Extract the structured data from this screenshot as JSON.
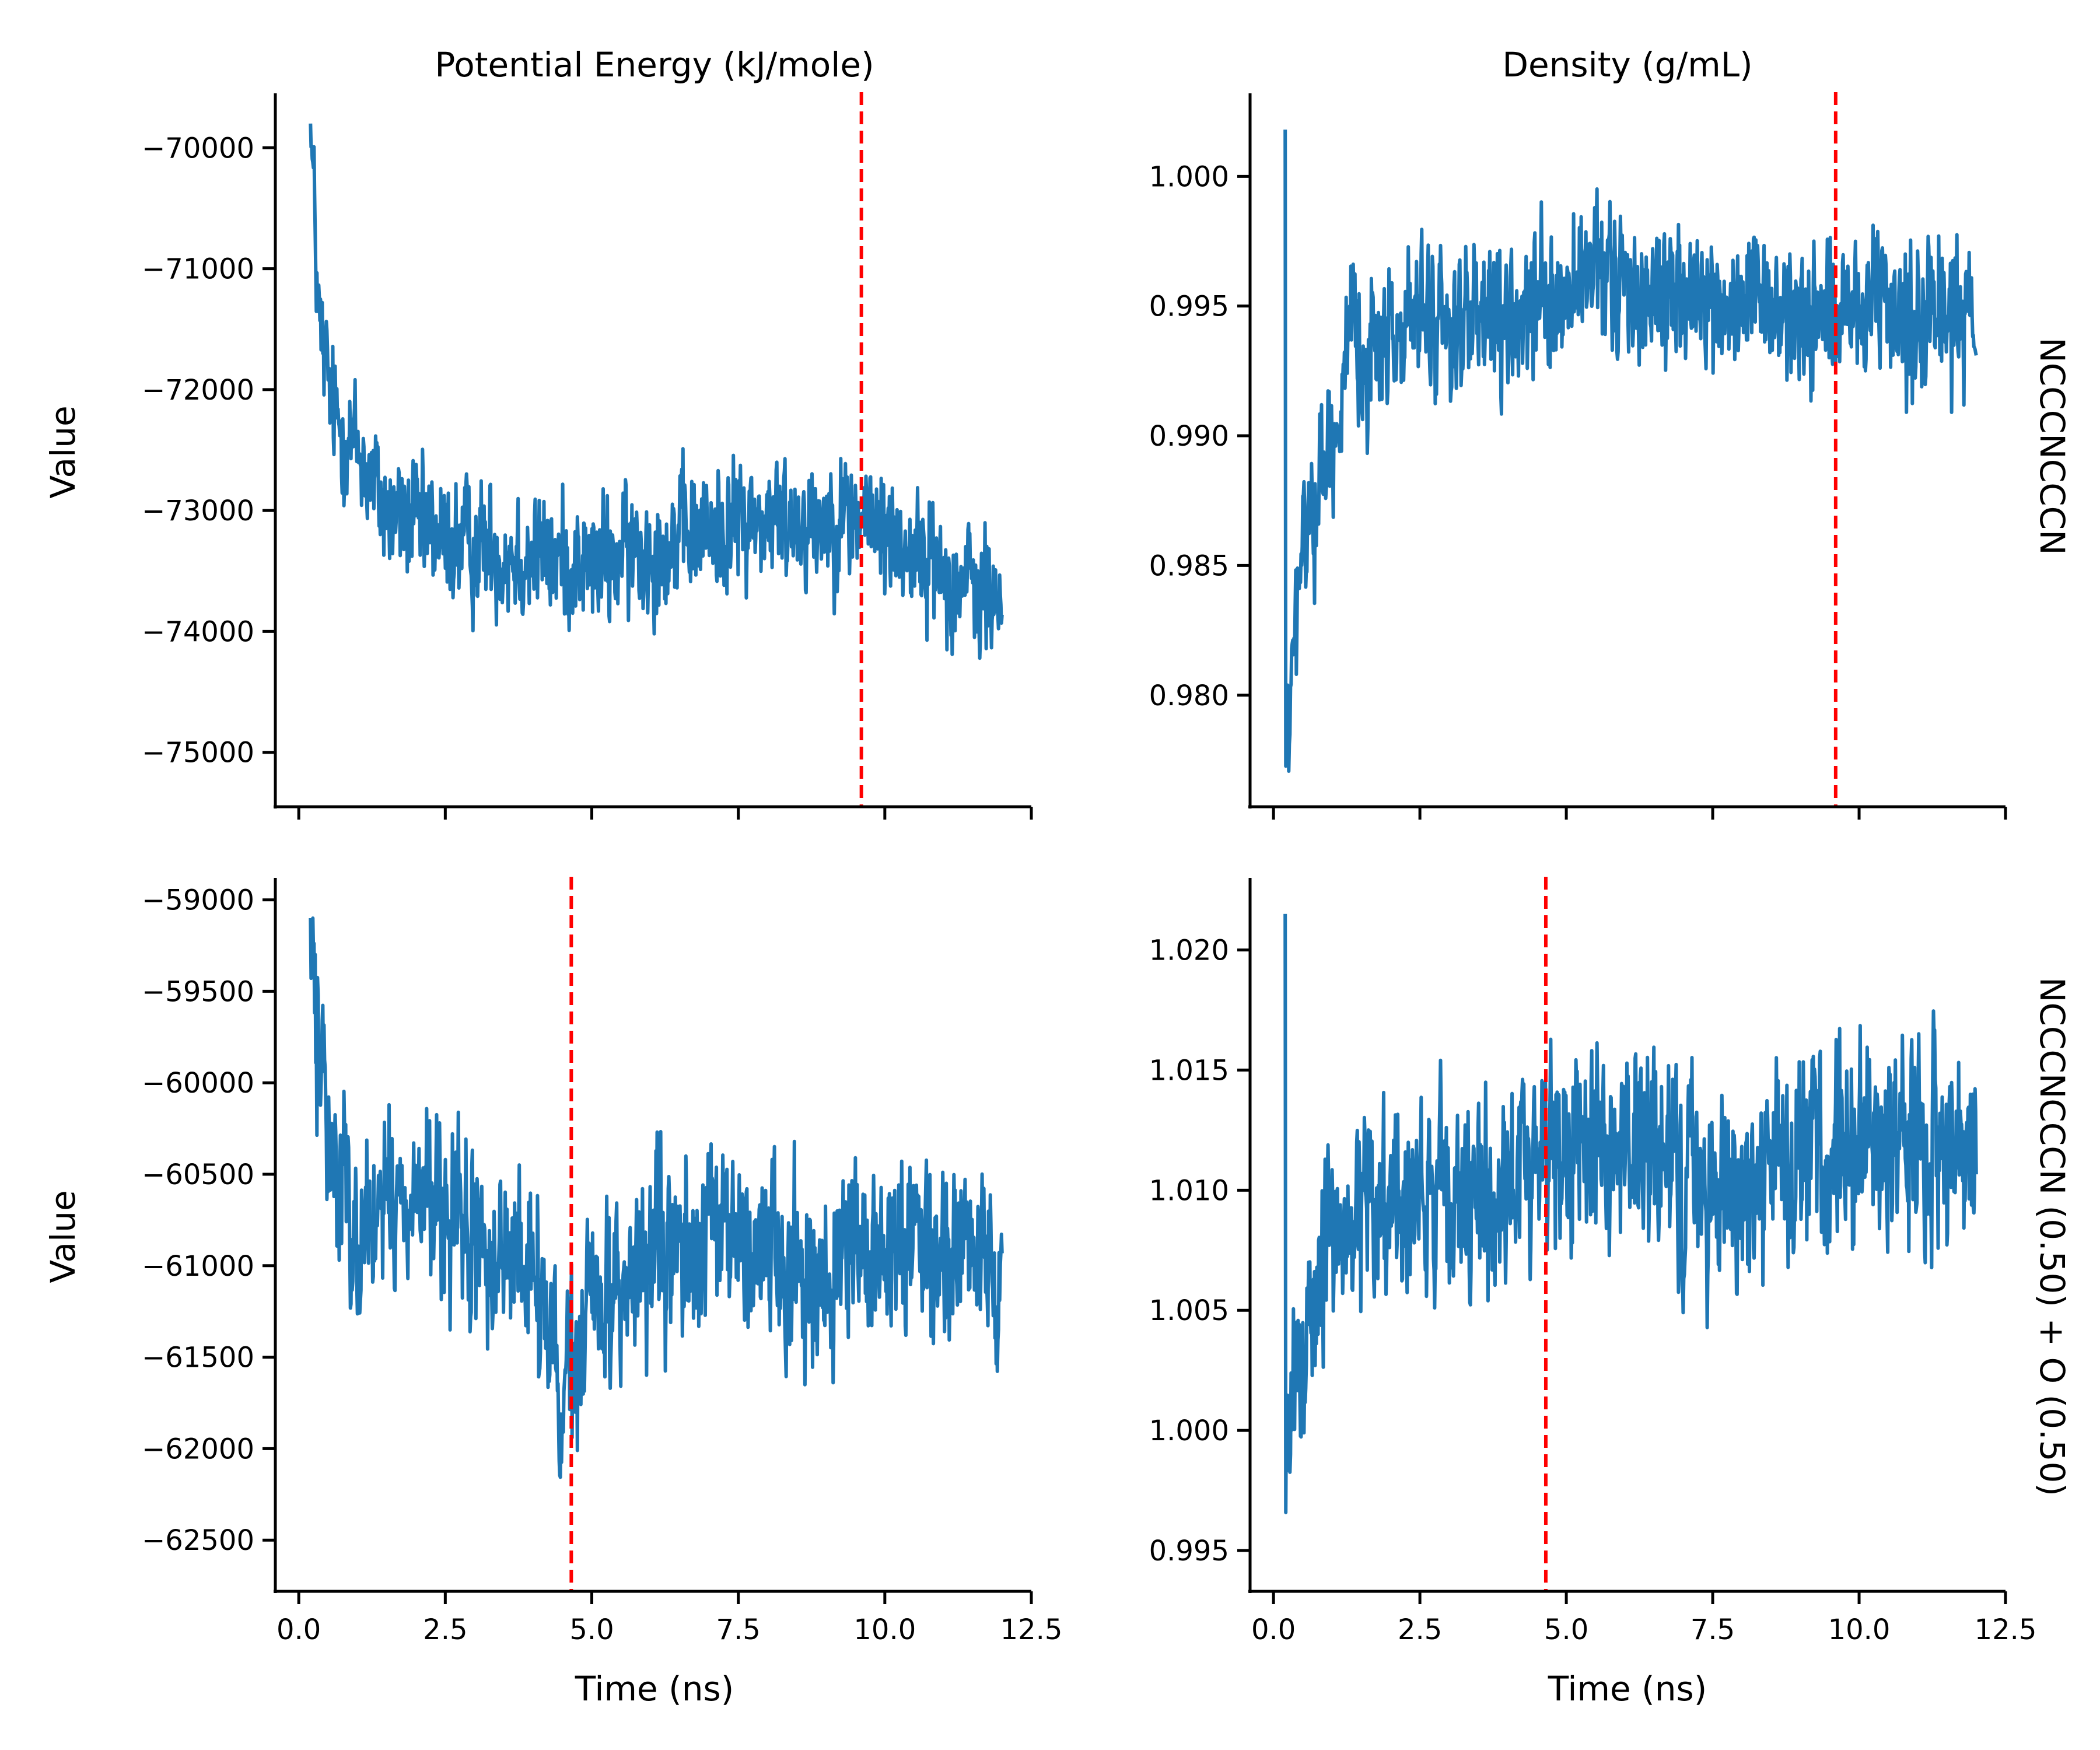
{
  "chart_data": [
    {
      "type": "line",
      "row": "NCCCNCCCN",
      "column_title": "Potential Energy (kJ/mole)",
      "ylabel": "Value",
      "xlabel": "",
      "xlim": [
        -0.4,
        12.5
      ],
      "ylim": [
        -75450,
        -69550
      ],
      "xticks": [
        0.0,
        2.5,
        5.0,
        7.5,
        10.0,
        12.5
      ],
      "yticks": [
        -75000,
        -74000,
        -73000,
        -72000,
        -71000,
        -70000
      ],
      "show_x_tick_labels": false,
      "vline": 9.6,
      "x_range": [
        0.2,
        12.0
      ],
      "series": {
        "color": "#1f77b4",
        "profile": [
          [
            0.2,
            -69800
          ],
          [
            0.35,
            -71500
          ],
          [
            0.6,
            -72200
          ],
          [
            1.0,
            -72500
          ],
          [
            1.5,
            -73000
          ],
          [
            2.5,
            -73250
          ],
          [
            5.0,
            -73450
          ],
          [
            7.5,
            -73100
          ],
          [
            9.6,
            -73050
          ],
          [
            11.0,
            -73500
          ],
          [
            12.0,
            -73800
          ]
        ],
        "noise": 350,
        "min": -75150,
        "max": -69800
      }
    },
    {
      "type": "line",
      "row": "NCCCNCCCN",
      "column_title": "Density (g/mL)",
      "ylabel": "",
      "xlabel": "",
      "xlim": [
        -0.4,
        12.5
      ],
      "ylim": [
        0.9757,
        1.0032
      ],
      "xticks": [
        0.0,
        2.5,
        5.0,
        7.5,
        10.0,
        12.5
      ],
      "yticks": [
        0.98,
        0.985,
        0.99,
        0.995,
        1.0
      ],
      "show_x_tick_labels": false,
      "vline": 9.6,
      "x_range": [
        0.2,
        12.0
      ],
      "series": {
        "color": "#1f77b4",
        "profile": [
          [
            0.2,
            0.977
          ],
          [
            0.5,
            0.986
          ],
          [
            1.0,
            0.99
          ],
          [
            1.3,
            0.993
          ],
          [
            2.5,
            0.9945
          ],
          [
            4.0,
            0.994
          ],
          [
            5.5,
            0.996
          ],
          [
            7.5,
            0.995
          ],
          [
            10.0,
            0.9945
          ],
          [
            12.0,
            0.995
          ]
        ],
        "noise": 0.0018,
        "min": 0.9766,
        "max": 1.0018
      }
    },
    {
      "type": "line",
      "row": "NCCCNCCCN (0.50) + O (0.50)",
      "column_title": "",
      "ylabel": "Value",
      "xlabel": "Time (ns)",
      "xlim": [
        -0.4,
        12.5
      ],
      "ylim": [
        -62780,
        -58880
      ],
      "xticks": [
        0.0,
        2.5,
        5.0,
        7.5,
        10.0,
        12.5
      ],
      "yticks": [
        -62500,
        -62000,
        -61500,
        -61000,
        -60500,
        -60000,
        -59500,
        -59000
      ],
      "show_x_tick_labels": true,
      "vline": 4.65,
      "x_range": [
        0.2,
        12.0
      ],
      "series": {
        "color": "#1f77b4",
        "profile": [
          [
            0.2,
            -59300
          ],
          [
            0.5,
            -60300
          ],
          [
            1.0,
            -60800
          ],
          [
            2.0,
            -60600
          ],
          [
            3.0,
            -60900
          ],
          [
            4.0,
            -61000
          ],
          [
            4.5,
            -61800
          ],
          [
            5.0,
            -61200
          ],
          [
            6.0,
            -61000
          ],
          [
            7.5,
            -60800
          ],
          [
            9.0,
            -61100
          ],
          [
            10.5,
            -60800
          ],
          [
            12.0,
            -61000
          ]
        ],
        "noise": 320,
        "min": -62600,
        "max": -59100
      }
    },
    {
      "type": "line",
      "row": "NCCCNCCCN (0.50) + O (0.50)",
      "column_title": "",
      "ylabel": "",
      "xlabel": "Time (ns)",
      "xlim": [
        -0.4,
        12.5
      ],
      "ylim": [
        0.9933,
        1.023
      ],
      "xticks": [
        0.0,
        2.5,
        5.0,
        7.5,
        10.0,
        12.5
      ],
      "yticks": [
        0.995,
        1.0,
        1.005,
        1.01,
        1.015,
        1.02
      ],
      "show_x_tick_labels": true,
      "vline": 4.65,
      "x_range": [
        0.2,
        12.0
      ],
      "series": {
        "color": "#1f77b4",
        "profile": [
          [
            0.2,
            0.998
          ],
          [
            0.5,
            1.004
          ],
          [
            1.0,
            1.008
          ],
          [
            2.0,
            1.01
          ],
          [
            3.5,
            1.009
          ],
          [
            4.6,
            1.012
          ],
          [
            6.0,
            1.012
          ],
          [
            7.5,
            1.01
          ],
          [
            9.0,
            1.011
          ],
          [
            10.5,
            1.012
          ],
          [
            12.0,
            1.012
          ]
        ],
        "noise": 0.0028,
        "min": 0.9946,
        "max": 1.0215
      }
    }
  ],
  "tick_labels": {
    "x": [
      "0.0",
      "2.5",
      "5.0",
      "7.5",
      "10.0",
      "12.5"
    ],
    "p0_y": [
      "−75000",
      "−74000",
      "−73000",
      "−72000",
      "−71000",
      "−70000"
    ],
    "p1_y": [
      "0.980",
      "0.985",
      "0.990",
      "0.995",
      "1.000"
    ],
    "p2_y": [
      "−62500",
      "−62000",
      "−61500",
      "−61000",
      "−60500",
      "−60000",
      "−59500",
      "−59000"
    ],
    "p3_y": [
      "0.995",
      "1.000",
      "1.005",
      "1.010",
      "1.015",
      "1.020"
    ]
  },
  "labels": {
    "col_title_left": "Potential Energy (kJ/mole)",
    "col_title_right": "Density (g/mL)",
    "row_title_top": "NCCCNCCCN",
    "row_title_bottom": "NCCCNCCCN (0.50) + O (0.50)",
    "ylabel_top": "Value",
    "ylabel_bottom": "Value",
    "xlabel_left": "Time (ns)",
    "xlabel_right": "Time (ns)"
  }
}
